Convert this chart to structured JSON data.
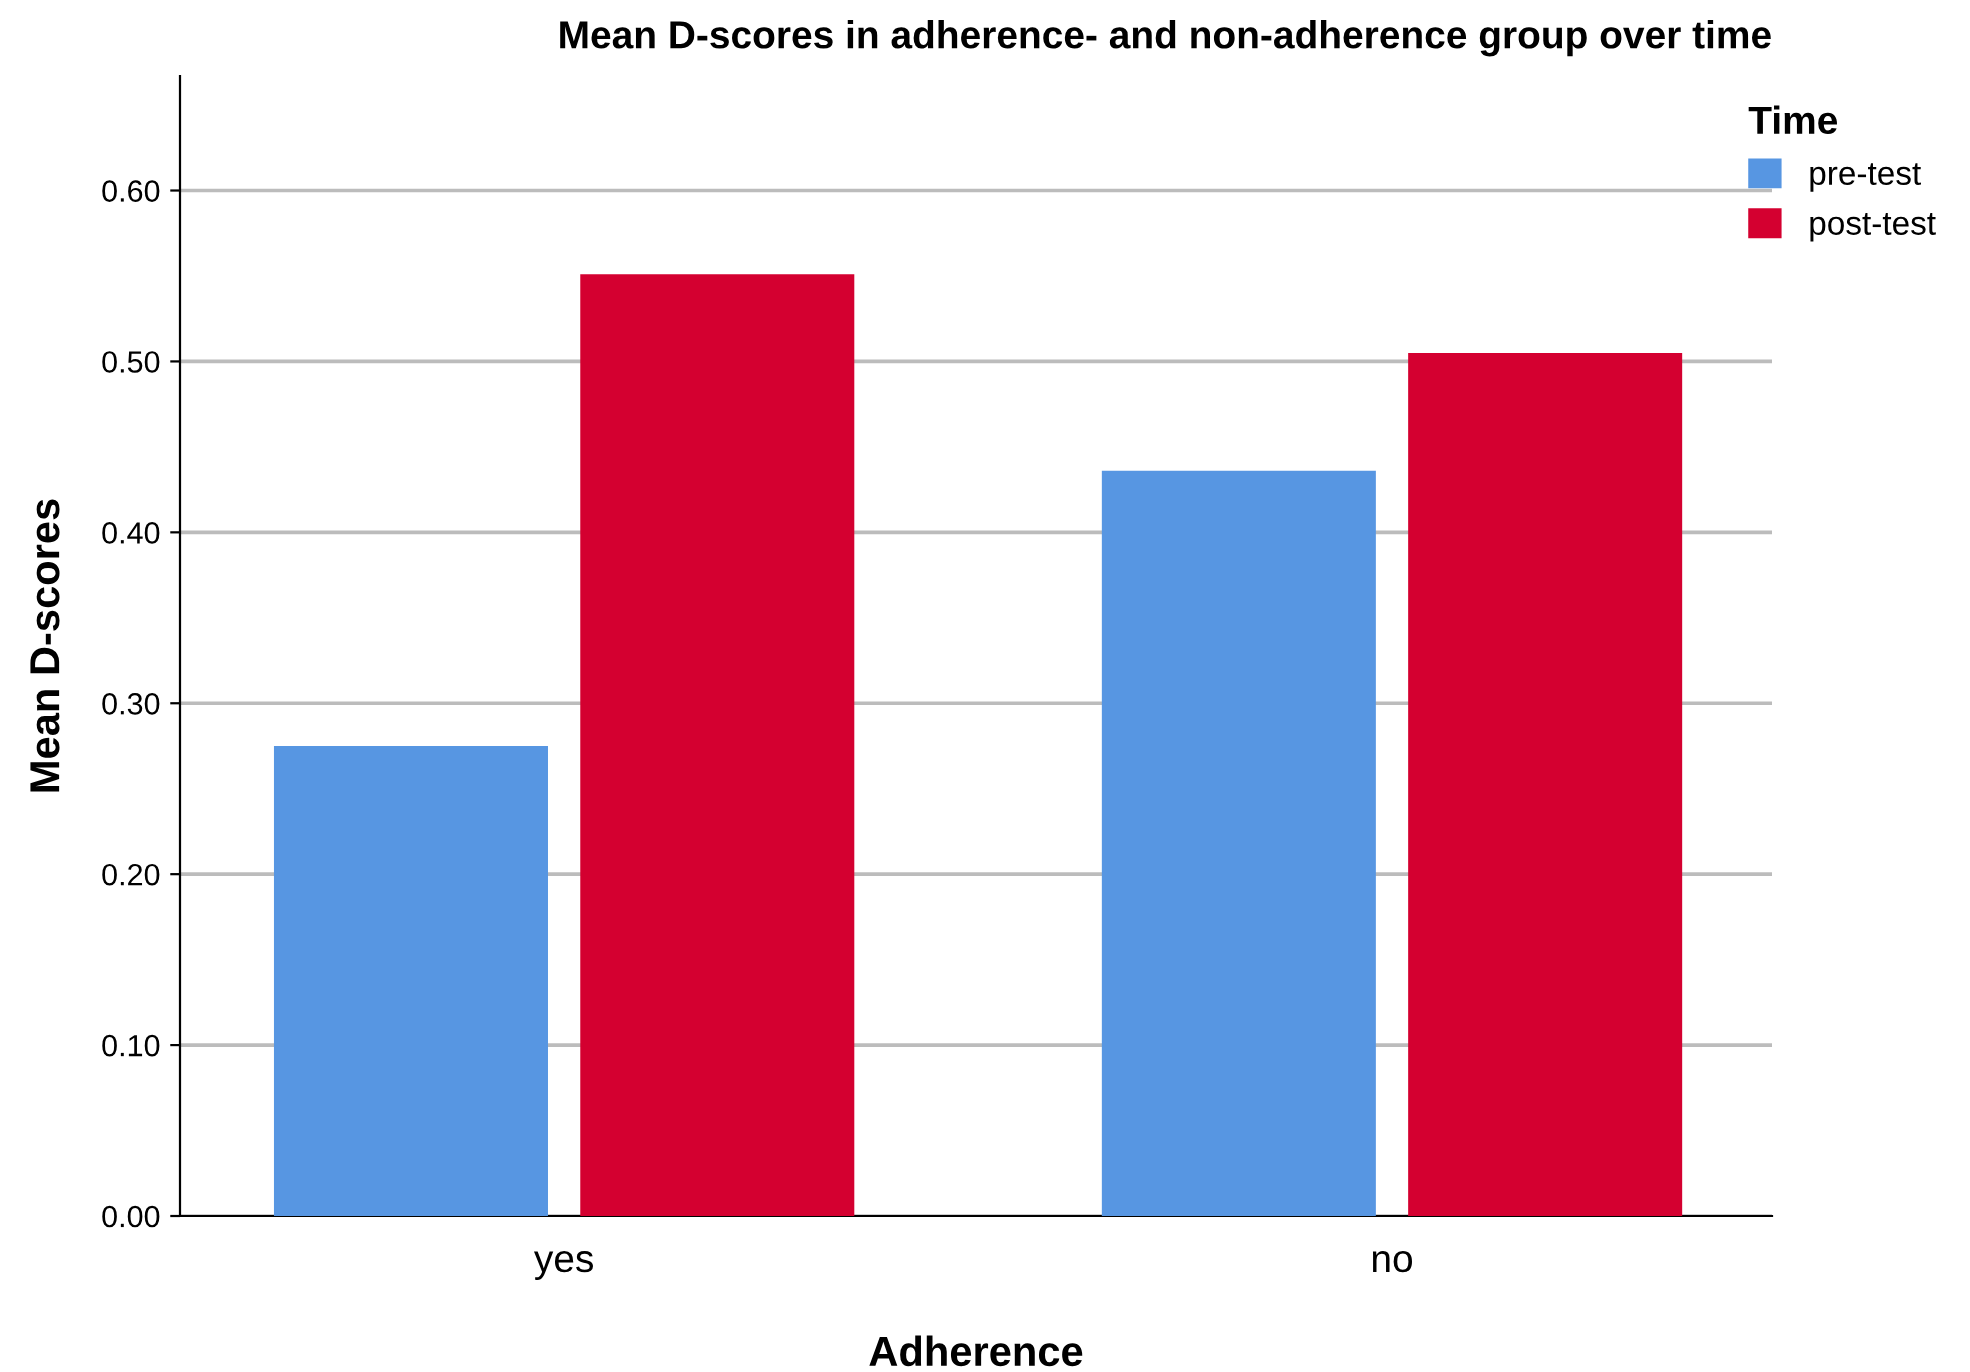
{
  "chart_data": {
    "type": "bar",
    "title": "Mean D-scores in adherence- and non-adherence group over time",
    "xlabel": "Adherence",
    "ylabel": "Mean D-scores",
    "legend_title": "Time",
    "categories": [
      "yes",
      "no"
    ],
    "series": [
      {
        "name": "pre-test",
        "color": "#5796e2",
        "values": [
          0.275,
          0.436
        ]
      },
      {
        "name": "post-test",
        "color": "#d40030",
        "values": [
          0.551,
          0.505
        ]
      }
    ],
    "ylim": [
      0,
      0.667
    ],
    "yticks": [
      {
        "value": 0,
        "label": "0.00"
      },
      {
        "value": 0.1,
        "label": "0.10"
      },
      {
        "value": 0.2,
        "label": "0.20"
      },
      {
        "value": 0.3,
        "label": "0.30"
      },
      {
        "value": 0.4,
        "label": "0.40"
      },
      {
        "value": 0.5,
        "label": "0.50"
      },
      {
        "value": 0.6,
        "label": "0.60"
      }
    ],
    "grid": "y",
    "legend": "top right"
  }
}
